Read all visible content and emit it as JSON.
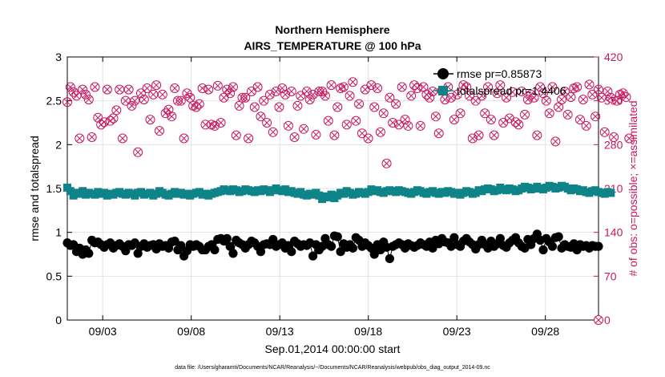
{
  "chart_data": {
    "type": "scatter",
    "title": "Northern Hemisphere",
    "subtitle": "AIRS_TEMPERATURE @ 100 hPa",
    "xlabel": "Sep.01,2014 00:00:00 start",
    "ylabel_left": "rmse and totalspread",
    "ylabel_right": "# of obs: o=possible; ×=assimilated",
    "footer": "data file: /Users/gharamti/Documents/NCAR/Reanalysis/~/Documents/NCAR/Reanalysis/webpub/obs_diag_output_2014-09.nc",
    "x_range_days": [
      1,
      31.0
    ],
    "x_tick_days": [
      3,
      8,
      13,
      18,
      23,
      28
    ],
    "x_tick_labels": [
      "09/03",
      "09/08",
      "09/13",
      "09/18",
      "09/23",
      "09/28"
    ],
    "ylim_left": [
      0,
      3
    ],
    "yticks_left": [
      "0",
      "0.5",
      "1",
      "1.5",
      "2",
      "2.5",
      "3"
    ],
    "ylim_right": [
      0,
      420
    ],
    "yticks_right": [
      "0",
      "70",
      "140",
      "210",
      "280",
      "350",
      "420"
    ],
    "legend_position": "top-right",
    "colors": {
      "rmse": "#000000",
      "spread": "#0f8488",
      "obs": "#c8175f",
      "grid": "#e2e2e2"
    },
    "series": [
      {
        "name": "rmse",
        "legend": "rmse pr=0.85873",
        "axis": "left",
        "values": [
          0.88,
          0.85,
          0.86,
          0.78,
          0.82,
          0.75,
          0.8,
          0.76,
          0.91,
          0.88,
          0.89,
          0.86,
          0.83,
          0.86,
          0.88,
          0.82,
          0.85,
          0.87,
          0.84,
          0.79,
          0.86,
          0.85,
          0.88,
          0.76,
          0.84,
          0.87,
          0.83,
          0.85,
          0.86,
          0.81,
          0.87,
          0.84,
          0.85,
          0.82,
          0.89,
          0.9,
          0.8,
          0.85,
          0.73,
          0.79,
          0.86,
          0.84,
          0.86,
          0.84,
          0.8,
          0.8,
          0.84,
          0.86,
          0.8,
          0.92,
          0.93,
          0.9,
          0.93,
          0.84,
          0.76,
          0.91,
          0.88,
          0.86,
          0.82,
          0.86,
          0.9,
          0.88,
          0.84,
          0.78,
          0.86,
          0.87,
          0.86,
          0.92,
          0.84,
          0.86,
          0.88,
          0.82,
          0.85,
          0.78,
          0.9,
          0.87,
          0.84,
          0.86,
          0.85,
          0.88,
          0.73,
          0.86,
          0.8,
          0.84,
          0.93,
          0.86,
          0.84,
          0.96,
          0.95,
          0.78,
          0.87,
          0.83,
          0.86,
          0.82,
          0.94,
          0.91,
          0.84,
          0.88,
          0.85,
          0.82,
          0.75,
          0.86,
          0.8,
          0.89,
          0.83,
          0.7,
          0.84,
          0.86,
          0.88,
          0.86,
          0.82,
          0.87,
          0.85,
          0.83,
          0.85,
          0.88,
          0.86,
          0.84,
          0.89,
          0.82,
          0.91,
          0.87,
          0.93,
          0.89,
          0.88,
          0.84,
          0.94,
          0.86,
          0.84,
          0.9,
          0.93,
          0.89,
          0.86,
          0.81,
          0.86,
          0.91,
          0.86,
          0.82,
          0.9,
          0.84,
          0.87,
          0.93,
          0.85,
          0.83,
          0.88,
          0.91,
          0.94,
          0.88,
          0.84,
          0.82,
          0.92,
          0.86,
          0.93,
          0.98,
          0.91,
          0.8,
          0.93,
          0.89,
          0.84,
          0.94,
          0.95,
          0.82,
          0.86,
          0.84,
          0.83,
          0.87,
          0.8,
          0.86,
          0.84,
          0.85,
          0.82,
          0.85,
          0.84,
          0.84
        ]
      },
      {
        "name": "totalspread",
        "legend": "totalspread pr=1.4406",
        "axis": "left",
        "values": [
          1.51,
          1.47,
          1.42,
          1.45,
          1.44,
          1.47,
          1.43,
          1.45,
          1.44,
          1.43,
          1.46,
          1.44,
          1.45,
          1.42,
          1.44,
          1.43,
          1.45,
          1.46,
          1.44,
          1.43,
          1.45,
          1.44,
          1.42,
          1.45,
          1.46,
          1.43,
          1.44,
          1.45,
          1.42,
          1.44,
          1.47,
          1.45,
          1.43,
          1.42,
          1.44,
          1.46,
          1.44,
          1.45,
          1.43,
          1.44,
          1.42,
          1.44,
          1.45,
          1.46,
          1.43,
          1.44,
          1.42,
          1.44,
          1.45,
          1.46,
          1.47,
          1.49,
          1.48,
          1.47,
          1.49,
          1.48,
          1.46,
          1.47,
          1.49,
          1.48,
          1.47,
          1.46,
          1.48,
          1.47,
          1.49,
          1.48,
          1.46,
          1.48,
          1.5,
          1.48,
          1.47,
          1.49,
          1.46,
          1.47,
          1.45,
          1.44,
          1.46,
          1.43,
          1.42,
          1.44,
          1.43,
          1.45,
          1.42,
          1.38,
          1.41,
          1.4,
          1.43,
          1.39,
          1.42,
          1.45,
          1.44,
          1.47,
          1.45,
          1.43,
          1.44,
          1.46,
          1.45,
          1.44,
          1.46,
          1.49,
          1.47,
          1.48,
          1.46,
          1.45,
          1.47,
          1.48,
          1.47,
          1.46,
          1.48,
          1.47,
          1.46,
          1.45,
          1.44,
          1.46,
          1.48,
          1.47,
          1.45,
          1.44,
          1.46,
          1.47,
          1.45,
          1.44,
          1.46,
          1.45,
          1.47,
          1.46,
          1.44,
          1.45,
          1.43,
          1.45,
          1.47,
          1.46,
          1.44,
          1.45,
          1.48,
          1.47,
          1.49,
          1.5,
          1.49,
          1.47,
          1.48,
          1.51,
          1.49,
          1.48,
          1.5,
          1.49,
          1.47,
          1.48,
          1.5,
          1.52,
          1.51,
          1.49,
          1.5,
          1.52,
          1.5,
          1.49,
          1.51,
          1.53,
          1.52,
          1.5,
          1.51,
          1.53,
          1.52,
          1.5,
          1.48,
          1.5,
          1.49,
          1.47,
          1.48,
          1.46,
          1.45,
          1.47,
          1.48,
          1.46,
          1.45,
          1.44,
          1.46,
          1.45
        ]
      },
      {
        "name": "obs_possible",
        "axis": "right",
        "values": [
          348,
          372,
          364,
          358,
          290,
          368,
          360,
          352,
          292,
          372,
          323,
          312,
          316,
          368,
          318,
          322,
          335,
          368,
          290,
          350,
          368,
          342,
          350,
          268,
          362,
          352,
          370,
          320,
          360,
          375,
          302,
          360,
          330,
          336,
          325,
          370,
          350,
          350,
          290,
          362,
          355,
          342,
          340,
          345,
          370,
          312,
          368,
          312,
          310,
          374,
          315,
          355,
          368,
          362,
          372,
          295,
          342,
          355,
          355,
          290,
          365,
          340,
          372,
          325,
          350,
          315,
          360,
          300,
          365,
          340,
          370,
          360,
          310,
          365,
          292,
          342,
          358,
          305,
          365,
          352,
          360,
          296,
          365,
          365,
          358,
          318,
          375,
          295,
          340,
          370,
          372,
          312,
          358,
          380,
          318,
          345,
          298,
          368,
          290,
          375,
          340,
          370,
          300,
          330,
          250,
          355,
          315,
          345,
          312,
          372,
          320,
          310,
          358,
          375,
          370,
          310,
          372,
          360,
          355,
          365,
          325,
          298,
          366,
          352,
          372,
          355,
          320,
          360,
          330,
          375,
          372,
          358,
          290,
          350,
          295,
          358,
          330,
          372,
          320,
          295,
          362,
          375,
          315,
          355,
          322,
          364,
          316,
          312,
          365,
          328,
          352,
          360,
          355,
          295,
          372,
          362,
          350,
          330,
          372,
          285,
          340,
          352,
          365,
          328,
          356,
          370,
          372,
          320,
          352,
          310,
          376,
          360,
          325,
          368,
          355,
          300,
          365,
          355,
          292,
          350,
          360,
          362,
          356,
          290
        ]
      }
    ]
  },
  "notes": "Observation counts are plotted with both 'o' (possible) and '×' (assimilated) markers on the right axis; values are identical."
}
